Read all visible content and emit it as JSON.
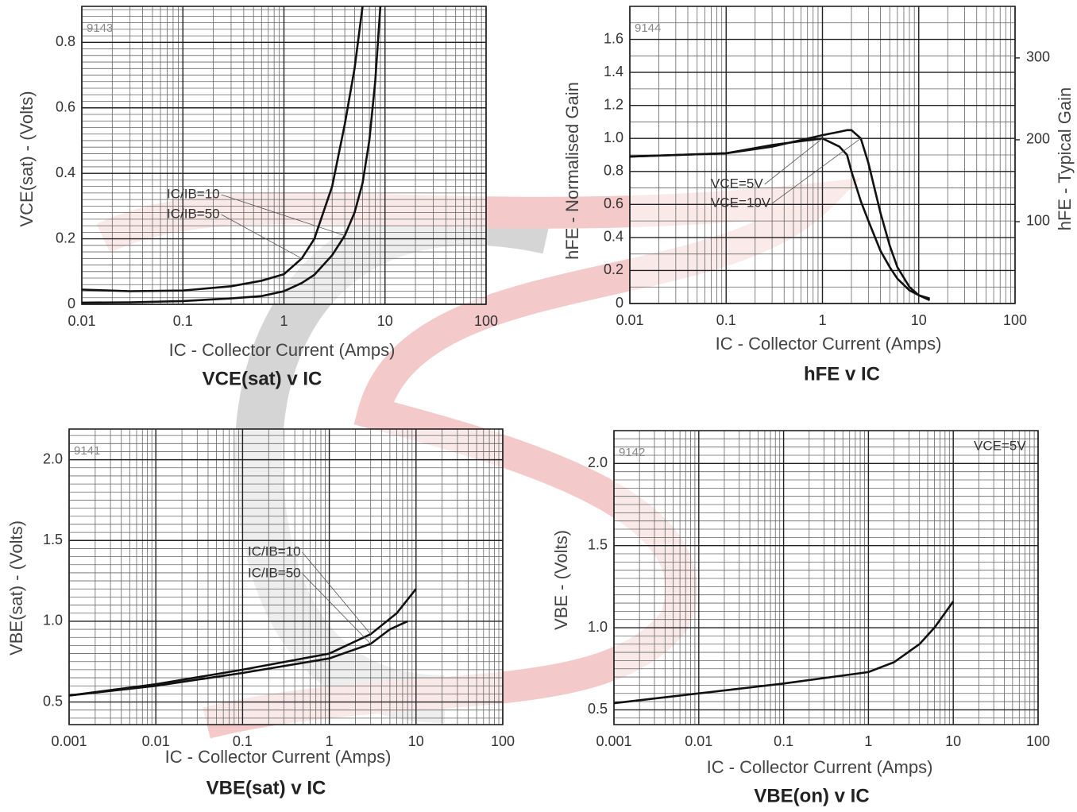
{
  "chart_data": [
    {
      "type": "line",
      "title": "VCE(sat) v IC",
      "code": "9143",
      "xlabel": "IC - Collector Current (Amps)",
      "ylabel": "VCE(sat) - (Volts)",
      "xscale": "log",
      "grid": true,
      "xlim": [
        0.01,
        100
      ],
      "xticks": [
        0.01,
        0.1,
        1,
        10,
        100
      ],
      "ylim": [
        0,
        0.91
      ],
      "yticks": [
        0,
        0.2,
        0.4,
        0.6,
        0.8
      ],
      "series": [
        {
          "name": "IC/IB=10",
          "color": "#111111",
          "x": [
            0.01,
            0.03,
            0.1,
            0.3,
            0.6,
            1,
            1.5,
            2,
            3,
            4,
            5,
            6,
            7,
            8,
            9
          ],
          "values": [
            0.005,
            0.006,
            0.01,
            0.018,
            0.025,
            0.04,
            0.065,
            0.09,
            0.15,
            0.21,
            0.28,
            0.37,
            0.5,
            0.68,
            0.91
          ]
        },
        {
          "name": "IC/IB=50",
          "color": "#111111",
          "x": [
            0.01,
            0.03,
            0.1,
            0.3,
            0.6,
            1,
            1.5,
            2,
            3,
            4,
            5,
            6
          ],
          "values": [
            0.045,
            0.04,
            0.042,
            0.055,
            0.072,
            0.092,
            0.14,
            0.2,
            0.36,
            0.55,
            0.72,
            0.91
          ]
        }
      ]
    },
    {
      "type": "line",
      "title": "hFE v IC",
      "code": "9144",
      "xlabel": "IC - Collector Current (Amps)",
      "ylabel": "hFE - Normalised Gain",
      "y2label": "hFE - Typical Gain",
      "xscale": "log",
      "grid": true,
      "xlim": [
        0.01,
        100
      ],
      "xticks": [
        0.01,
        0.1,
        1,
        10,
        100
      ],
      "ylim": [
        0,
        1.8
      ],
      "yticks": [
        0,
        0.2,
        0.4,
        0.6,
        0.8,
        {
          "value": 1,
          "label": "1.0"
        },
        1.2,
        1.4,
        1.6
      ],
      "y2lim": [
        0,
        363
      ],
      "y2ticks": [
        100,
        200,
        300
      ],
      "series": [
        {
          "name": "VCE=5V",
          "color": "#111111",
          "x": [
            0.01,
            0.1,
            0.3,
            1,
            1.5,
            1.8,
            2,
            2.5,
            3,
            4,
            5,
            6,
            8,
            10,
            13
          ],
          "values": [
            0.89,
            0.91,
            0.96,
            1.0,
            0.95,
            0.9,
            0.8,
            0.62,
            0.5,
            0.32,
            0.22,
            0.15,
            0.08,
            0.05,
            0.03
          ]
        },
        {
          "name": "VCE=10V",
          "color": "#111111",
          "x": [
            0.01,
            0.1,
            0.3,
            1,
            1.5,
            1.8,
            2,
            2.5,
            3,
            4,
            5,
            6,
            8,
            10,
            13
          ],
          "values": [
            0.89,
            0.91,
            0.95,
            1.02,
            1.04,
            1.05,
            1.05,
            1.0,
            0.85,
            0.55,
            0.35,
            0.22,
            0.1,
            0.05,
            0.02
          ]
        }
      ]
    },
    {
      "type": "line",
      "title": "VBE(sat) v IC",
      "code": "9141",
      "xlabel": "IC - Collector Current (Amps)",
      "ylabel": "VBE(sat) - (Volts)",
      "xscale": "log",
      "grid": true,
      "xlim": [
        0.001,
        100
      ],
      "xticks": [
        0.001,
        0.01,
        0.1,
        1,
        10,
        100
      ],
      "ylim": [
        0.36,
        2.19
      ],
      "yticks": [
        0.5,
        {
          "value": 1,
          "label": "1.0"
        },
        1.5,
        {
          "value": 2,
          "label": "2.0"
        }
      ],
      "series": [
        {
          "name": "IC/IB=10",
          "color": "#111111",
          "x": [
            0.001,
            0.01,
            0.1,
            1,
            3,
            6,
            10
          ],
          "values": [
            0.54,
            0.61,
            0.7,
            0.8,
            0.92,
            1.05,
            1.2
          ]
        },
        {
          "name": "IC/IB=50",
          "color": "#111111",
          "x": [
            0.001,
            0.01,
            0.1,
            1,
            3,
            5,
            8
          ],
          "values": [
            0.54,
            0.6,
            0.68,
            0.77,
            0.86,
            0.95,
            1.0
          ]
        }
      ]
    },
    {
      "type": "line",
      "title": "VBE(on) v IC",
      "code": "9142",
      "xlabel": "IC - Collector Current (Amps)",
      "ylabel": "VBE - (Volts)",
      "xscale": "log",
      "grid": true,
      "xlim": [
        0.001,
        100
      ],
      "xticks": [
        0.001,
        0.01,
        0.1,
        1,
        10,
        100
      ],
      "ylim": [
        0.41,
        2.2
      ],
      "yticks": [
        0.5,
        {
          "value": 1,
          "label": "1.0"
        },
        1.5,
        {
          "value": 2,
          "label": "2.0"
        }
      ],
      "series": [
        {
          "name": "VCE=5V",
          "color": "#111111",
          "x": [
            0.001,
            0.01,
            0.1,
            1,
            2,
            4,
            6,
            10
          ],
          "values": [
            0.54,
            0.6,
            0.66,
            0.73,
            0.79,
            0.9,
            1.0,
            1.16
          ]
        }
      ]
    }
  ]
}
